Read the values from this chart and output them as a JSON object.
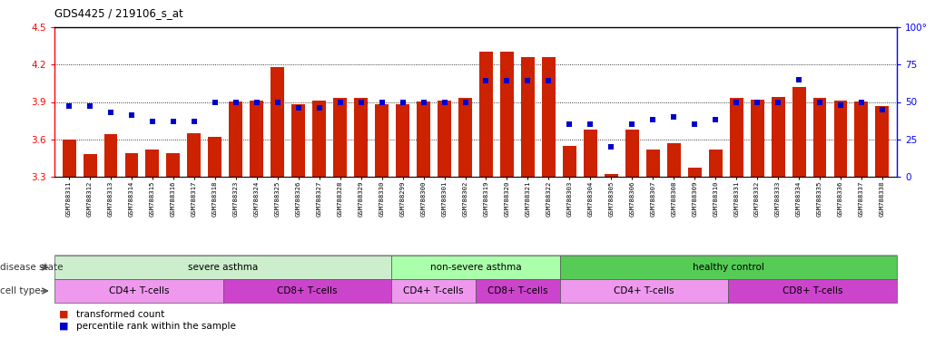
{
  "title": "GDS4425 / 219106_s_at",
  "samples": [
    "GSM788311",
    "GSM788312",
    "GSM788313",
    "GSM788314",
    "GSM788315",
    "GSM788316",
    "GSM788317",
    "GSM788318",
    "GSM788323",
    "GSM788324",
    "GSM788325",
    "GSM788326",
    "GSM788327",
    "GSM788328",
    "GSM788329",
    "GSM788330",
    "GSM788299",
    "GSM788300",
    "GSM788301",
    "GSM788302",
    "GSM788319",
    "GSM788320",
    "GSM788321",
    "GSM788322",
    "GSM788303",
    "GSM788304",
    "GSM788305",
    "GSM788306",
    "GSM788307",
    "GSM788308",
    "GSM788309",
    "GSM788310",
    "GSM788331",
    "GSM788332",
    "GSM788333",
    "GSM788334",
    "GSM788335",
    "GSM788336",
    "GSM788337",
    "GSM788338"
  ],
  "bar_values": [
    3.6,
    3.48,
    3.64,
    3.49,
    3.52,
    3.49,
    3.65,
    3.62,
    3.9,
    3.91,
    4.18,
    3.88,
    3.91,
    3.93,
    3.93,
    3.88,
    3.88,
    3.9,
    3.91,
    3.93,
    4.3,
    4.3,
    4.26,
    4.26,
    3.55,
    3.68,
    3.32,
    3.68,
    3.52,
    3.57,
    3.37,
    3.52,
    3.93,
    3.92,
    3.94,
    4.02,
    3.93,
    3.91,
    3.9,
    3.87
  ],
  "percentile_values": [
    47,
    47,
    43,
    41,
    37,
    37,
    37,
    50,
    50,
    50,
    50,
    46,
    46,
    50,
    50,
    50,
    50,
    50,
    50,
    50,
    64,
    64,
    64,
    64,
    35,
    35,
    20,
    35,
    38,
    40,
    35,
    38,
    50,
    50,
    50,
    65,
    50,
    48,
    50,
    45
  ],
  "bar_color": "#cc2200",
  "dot_color": "#0000cc",
  "ylim_left": [
    3.3,
    4.5
  ],
  "ylim_right": [
    0,
    100
  ],
  "yticks_left": [
    3.3,
    3.6,
    3.9,
    4.2,
    4.5
  ],
  "yticks_right": [
    0,
    25,
    50,
    75,
    100
  ],
  "grid_lines": [
    3.6,
    3.9,
    4.2
  ],
  "disease_groups": [
    {
      "label": "severe asthma",
      "start": 0,
      "end": 16,
      "color": "#cceecc"
    },
    {
      "label": "non-severe asthma",
      "start": 16,
      "end": 24,
      "color": "#aaffaa"
    },
    {
      "label": "healthy control",
      "start": 24,
      "end": 40,
      "color": "#55cc55"
    }
  ],
  "cell_groups": [
    {
      "label": "CD4+ T-cells",
      "start": 0,
      "end": 8,
      "color": "#ee99ee"
    },
    {
      "label": "CD8+ T-cells",
      "start": 8,
      "end": 16,
      "color": "#cc44cc"
    },
    {
      "label": "CD4+ T-cells",
      "start": 16,
      "end": 20,
      "color": "#ee99ee"
    },
    {
      "label": "CD8+ T-cells",
      "start": 20,
      "end": 24,
      "color": "#cc44cc"
    },
    {
      "label": "CD4+ T-cells",
      "start": 24,
      "end": 32,
      "color": "#ee99ee"
    },
    {
      "label": "CD8+ T-cells",
      "start": 32,
      "end": 40,
      "color": "#cc44cc"
    }
  ],
  "disease_label": "disease state",
  "cell_label": "cell type",
  "legend_bar": "transformed count",
  "legend_dot": "percentile rank within the sample"
}
